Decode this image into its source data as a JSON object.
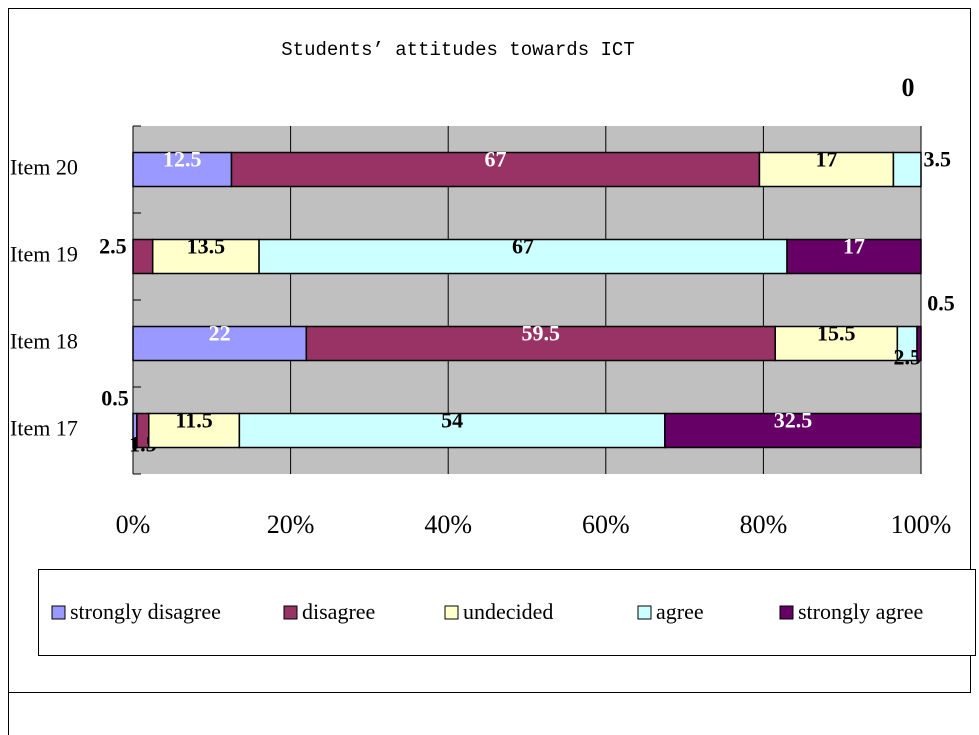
{
  "chart_data": {
    "type": "stacked-bar-horizontal-percent",
    "title": "Students’ attitudes towards ICT",
    "categories": [
      "Item 20",
      "Item 19",
      "Item 18",
      "Item 17"
    ],
    "series": [
      {
        "name": "strongly disagree",
        "color": "#9999ff",
        "values": [
          12.5,
          null,
          22,
          0.5
        ]
      },
      {
        "name": "disagree",
        "color": "#993366",
        "values": [
          67,
          2.5,
          59.5,
          1.5
        ]
      },
      {
        "name": "undecided",
        "color": "#ffffcc",
        "values": [
          17,
          13.5,
          15.5,
          11.5
        ]
      },
      {
        "name": "agree",
        "color": "#ccffff",
        "values": [
          3.5,
          67,
          2.5,
          54
        ]
      },
      {
        "name": "strongly agree",
        "color": "#660066",
        "values": [
          0,
          17,
          0.5,
          32.5
        ]
      }
    ],
    "xlim": [
      0,
      100
    ],
    "xticks": [
      {
        "value": 0,
        "label": "0%"
      },
      {
        "value": 20,
        "label": "20%"
      },
      {
        "value": 40,
        "label": "40%"
      },
      {
        "value": 60,
        "label": "60%"
      },
      {
        "value": 80,
        "label": "80%"
      },
      {
        "value": 100,
        "label": "100%"
      }
    ],
    "grid": true,
    "legend": "bottom"
  }
}
